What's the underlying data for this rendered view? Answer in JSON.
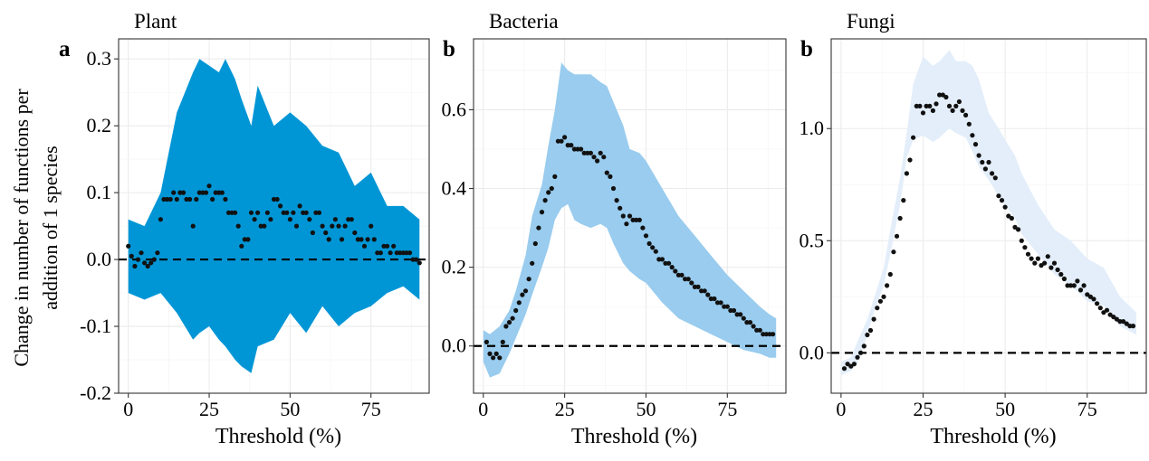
{
  "ylabel_line1": "Change in number of functions per",
  "ylabel_line2": "addition of 1 species",
  "chart_data": [
    {
      "type": "scatter",
      "title": "Plant",
      "letter": "a",
      "xlabel": "Threshold (%)",
      "ylabel": "Change in number of functions per addition of 1 species",
      "xlim": [
        -3,
        93
      ],
      "ylim": [
        -0.2,
        0.33
      ],
      "xticks": [
        0,
        25,
        50,
        75
      ],
      "xtick_labels": [
        "0",
        "25",
        "50",
        "75"
      ],
      "yticks": [
        -0.2,
        -0.1,
        0.0,
        0.1,
        0.2,
        0.3
      ],
      "ytick_labels": [
        "-0.2",
        "-0.1",
        "0.0",
        "0.1",
        "0.2",
        "0.3"
      ],
      "band_color": "#0096d6",
      "reference_line_y": 0,
      "band": {
        "x": [
          0,
          5,
          10,
          15,
          20,
          22,
          25,
          28,
          30,
          33,
          35,
          38,
          40,
          45,
          50,
          55,
          60,
          65,
          70,
          75,
          80,
          85,
          90
        ],
        "upper": [
          0.06,
          0.05,
          0.1,
          0.22,
          0.28,
          0.3,
          0.29,
          0.28,
          0.3,
          0.27,
          0.24,
          0.2,
          0.26,
          0.2,
          0.22,
          0.2,
          0.17,
          0.16,
          0.11,
          0.13,
          0.08,
          0.08,
          0.06
        ],
        "lower": [
          -0.05,
          -0.06,
          -0.05,
          -0.08,
          -0.12,
          -0.11,
          -0.1,
          -0.12,
          -0.13,
          -0.15,
          -0.16,
          -0.17,
          -0.13,
          -0.12,
          -0.08,
          -0.11,
          -0.07,
          -0.1,
          -0.08,
          -0.07,
          -0.05,
          -0.04,
          -0.06
        ]
      },
      "points": {
        "x": [
          0,
          1,
          2,
          3,
          4,
          5,
          6,
          7,
          8,
          9,
          10,
          11,
          12,
          13,
          14,
          15,
          16,
          17,
          18,
          19,
          20,
          21,
          22,
          23,
          24,
          25,
          26,
          27,
          28,
          29,
          30,
          31,
          32,
          33,
          34,
          35,
          36,
          37,
          38,
          39,
          40,
          41,
          42,
          43,
          44,
          45,
          46,
          47,
          48,
          49,
          50,
          51,
          52,
          53,
          54,
          55,
          56,
          57,
          58,
          59,
          60,
          61,
          62,
          63,
          64,
          65,
          66,
          67,
          68,
          69,
          70,
          71,
          72,
          73,
          74,
          75,
          76,
          77,
          78,
          79,
          80,
          81,
          82,
          83,
          84,
          85,
          86,
          87,
          88,
          89,
          90
        ],
        "y": [
          0.02,
          0.005,
          -0.01,
          0.0,
          0.01,
          -0.005,
          -0.01,
          -0.005,
          0.0,
          0.01,
          0.06,
          0.09,
          0.09,
          0.09,
          0.1,
          0.09,
          0.1,
          0.1,
          0.09,
          0.09,
          0.05,
          0.09,
          0.1,
          0.1,
          0.1,
          0.11,
          0.09,
          0.1,
          0.1,
          0.1,
          0.09,
          0.07,
          0.07,
          0.07,
          0.05,
          0.02,
          0.03,
          0.03,
          0.07,
          0.06,
          0.07,
          0.05,
          0.05,
          0.07,
          0.06,
          0.09,
          0.09,
          0.08,
          0.07,
          0.07,
          0.06,
          0.07,
          0.05,
          0.08,
          0.07,
          0.07,
          0.06,
          0.04,
          0.07,
          0.07,
          0.05,
          0.04,
          0.03,
          0.05,
          0.06,
          0.05,
          0.03,
          0.05,
          0.06,
          0.06,
          0.04,
          0.03,
          0.03,
          0.02,
          0.03,
          0.05,
          0.03,
          0.01,
          0.01,
          0.02,
          0.02,
          0.01,
          0.02,
          0.01,
          0.01,
          0.01,
          0.01,
          0.01,
          0.0,
          0.0,
          -0.005
        ]
      }
    },
    {
      "type": "scatter",
      "title": "Bacteria",
      "letter": "b",
      "xlabel": "Threshold (%)",
      "ylabel": "",
      "xlim": [
        -3,
        93
      ],
      "ylim": [
        -0.12,
        0.78
      ],
      "xticks": [
        0,
        25,
        50,
        75
      ],
      "xtick_labels": [
        "0",
        "25",
        "50",
        "75"
      ],
      "yticks": [
        0.0,
        0.2,
        0.4,
        0.6
      ],
      "ytick_labels": [
        "0.0",
        "0.2",
        "0.4",
        "0.6"
      ],
      "band_color": "#99ccee",
      "reference_line_y": 0,
      "band": {
        "x": [
          0,
          2,
          5,
          8,
          10,
          13,
          15,
          18,
          20,
          22,
          24,
          26,
          28,
          30,
          33,
          36,
          38,
          40,
          43,
          45,
          48,
          50,
          55,
          60,
          65,
          70,
          75,
          80,
          85,
          88,
          90
        ],
        "upper": [
          0.04,
          0.03,
          0.05,
          0.09,
          0.14,
          0.23,
          0.33,
          0.41,
          0.51,
          0.6,
          0.72,
          0.7,
          0.69,
          0.69,
          0.69,
          0.67,
          0.66,
          0.62,
          0.56,
          0.5,
          0.49,
          0.47,
          0.4,
          0.33,
          0.28,
          0.23,
          0.18,
          0.14,
          0.1,
          0.08,
          0.07
        ],
        "lower": [
          -0.04,
          -0.08,
          -0.07,
          -0.02,
          0.02,
          0.08,
          0.13,
          0.2,
          0.25,
          0.32,
          0.35,
          0.36,
          0.32,
          0.31,
          0.3,
          0.31,
          0.3,
          0.26,
          0.21,
          0.19,
          0.17,
          0.16,
          0.11,
          0.07,
          0.05,
          0.03,
          0.01,
          -0.01,
          -0.02,
          -0.03,
          -0.03
        ]
      },
      "points": {
        "x": [
          1,
          2,
          3,
          4,
          5,
          6,
          7,
          8,
          9,
          10,
          11,
          12,
          13,
          14,
          15,
          16,
          17,
          18,
          19,
          20,
          21,
          22,
          23,
          24,
          25,
          26,
          27,
          28,
          29,
          30,
          31,
          32,
          33,
          34,
          35,
          36,
          37,
          38,
          39,
          40,
          41,
          42,
          43,
          44,
          45,
          46,
          47,
          48,
          49,
          50,
          51,
          52,
          53,
          54,
          55,
          56,
          57,
          58,
          59,
          60,
          61,
          62,
          63,
          64,
          65,
          66,
          67,
          68,
          69,
          70,
          71,
          72,
          73,
          74,
          75,
          76,
          77,
          78,
          79,
          80,
          81,
          82,
          83,
          84,
          85,
          86,
          87,
          88,
          89
        ],
        "y": [
          0.01,
          -0.02,
          -0.03,
          -0.02,
          -0.03,
          0.01,
          0.05,
          0.06,
          0.07,
          0.09,
          0.11,
          0.13,
          0.14,
          0.17,
          0.21,
          0.26,
          0.3,
          0.34,
          0.37,
          0.39,
          0.4,
          0.43,
          0.52,
          0.52,
          0.53,
          0.51,
          0.51,
          0.5,
          0.5,
          0.5,
          0.49,
          0.49,
          0.49,
          0.48,
          0.47,
          0.49,
          0.48,
          0.44,
          0.43,
          0.4,
          0.37,
          0.35,
          0.33,
          0.31,
          0.33,
          0.32,
          0.32,
          0.32,
          0.3,
          0.28,
          0.26,
          0.25,
          0.24,
          0.22,
          0.22,
          0.21,
          0.21,
          0.2,
          0.19,
          0.18,
          0.18,
          0.17,
          0.17,
          0.16,
          0.15,
          0.15,
          0.14,
          0.14,
          0.13,
          0.12,
          0.12,
          0.11,
          0.11,
          0.1,
          0.1,
          0.09,
          0.09,
          0.08,
          0.08,
          0.07,
          0.06,
          0.06,
          0.05,
          0.04,
          0.04,
          0.03,
          0.03,
          0.03,
          0.03
        ]
      }
    },
    {
      "type": "scatter",
      "title": "Fungi",
      "letter": "b",
      "xlabel": "Threshold (%)",
      "ylabel": "",
      "xlim": [
        -3,
        93
      ],
      "ylim": [
        -0.18,
        1.4
      ],
      "xticks": [
        0,
        25,
        50,
        75
      ],
      "xtick_labels": [
        "0",
        "25",
        "50",
        "75"
      ],
      "yticks": [
        0.0,
        0.5,
        1.0
      ],
      "ytick_labels": [
        "0.0",
        "0.5",
        "1.0"
      ],
      "band_color": "#e3eefa",
      "reference_line_y": 0,
      "band": {
        "x": [
          0,
          3,
          5,
          8,
          10,
          13,
          15,
          18,
          20,
          22,
          25,
          28,
          30,
          33,
          35,
          38,
          40,
          42,
          45,
          48,
          50,
          53,
          55,
          60,
          65,
          70,
          75,
          80,
          85,
          90
        ],
        "upper": [
          -0.04,
          -0.02,
          0.05,
          0.15,
          0.24,
          0.38,
          0.55,
          0.78,
          0.98,
          1.2,
          1.32,
          1.28,
          1.3,
          1.35,
          1.3,
          1.3,
          1.28,
          1.22,
          1.07,
          1.0,
          0.95,
          0.88,
          0.8,
          0.66,
          0.55,
          0.5,
          0.42,
          0.38,
          0.25,
          0.18
        ],
        "lower": [
          -0.1,
          -0.08,
          -0.05,
          0.08,
          0.18,
          0.3,
          0.44,
          0.66,
          0.87,
          0.95,
          0.97,
          0.94,
          0.96,
          1.0,
          0.98,
          0.96,
          0.9,
          0.83,
          0.77,
          0.7,
          0.66,
          0.6,
          0.53,
          0.44,
          0.35,
          0.3,
          0.23,
          0.21,
          0.12,
          0.08
        ]
      },
      "points": {
        "x": [
          1,
          2,
          3,
          4,
          5,
          6,
          7,
          8,
          9,
          10,
          11,
          12,
          13,
          14,
          15,
          16,
          17,
          18,
          19,
          20,
          21,
          22,
          23,
          24,
          25,
          26,
          27,
          28,
          29,
          30,
          31,
          32,
          33,
          34,
          35,
          36,
          37,
          38,
          39,
          40,
          41,
          42,
          43,
          44,
          45,
          46,
          47,
          48,
          49,
          50,
          51,
          52,
          53,
          54,
          55,
          56,
          57,
          58,
          59,
          60,
          61,
          62,
          63,
          64,
          65,
          66,
          67,
          68,
          69,
          70,
          71,
          72,
          73,
          74,
          75,
          76,
          77,
          78,
          79,
          80,
          81,
          82,
          83,
          84,
          85,
          86,
          87,
          88,
          89
        ],
        "y": [
          -0.07,
          -0.05,
          -0.06,
          -0.05,
          -0.02,
          0.0,
          0.03,
          0.08,
          0.1,
          0.15,
          0.2,
          0.23,
          0.25,
          0.3,
          0.35,
          0.45,
          0.52,
          0.6,
          0.68,
          0.8,
          0.86,
          0.96,
          1.1,
          1.1,
          1.07,
          1.1,
          1.1,
          1.08,
          1.11,
          1.15,
          1.15,
          1.14,
          1.1,
          1.08,
          1.1,
          1.12,
          1.08,
          1.06,
          1.02,
          0.97,
          0.93,
          0.88,
          0.85,
          0.82,
          0.85,
          0.8,
          0.78,
          0.7,
          0.68,
          0.65,
          0.61,
          0.6,
          0.56,
          0.55,
          0.5,
          0.47,
          0.44,
          0.42,
          0.4,
          0.42,
          0.39,
          0.4,
          0.43,
          0.38,
          0.4,
          0.37,
          0.35,
          0.33,
          0.3,
          0.3,
          0.3,
          0.32,
          0.28,
          0.3,
          0.26,
          0.25,
          0.24,
          0.22,
          0.2,
          0.18,
          0.19,
          0.17,
          0.16,
          0.15,
          0.14,
          0.14,
          0.13,
          0.12,
          0.12
        ]
      }
    }
  ]
}
